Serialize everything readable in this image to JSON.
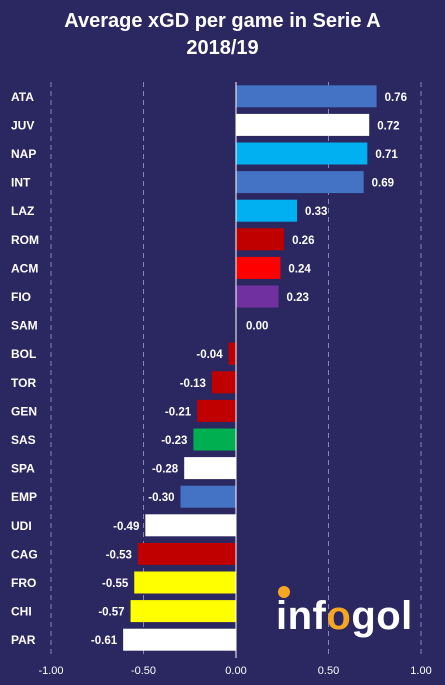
{
  "title_line1": "Average xGD per game in Serie A",
  "title_line2": "2018/19",
  "brand": {
    "pre": "inf",
    "accent": "o",
    "post": "gol",
    "accent_color": "#f5a623"
  },
  "chart_data": {
    "type": "bar",
    "orientation": "horizontal",
    "title": "Average xGD per game in Serie A 2018/19",
    "categories": [
      "ATA",
      "JUV",
      "NAP",
      "INT",
      "LAZ",
      "ROM",
      "ACM",
      "FIO",
      "SAM",
      "BOL",
      "TOR",
      "GEN",
      "SAS",
      "SPA",
      "EMP",
      "UDI",
      "CAG",
      "FRO",
      "CHI",
      "PAR"
    ],
    "values": [
      0.76,
      0.72,
      0.71,
      0.69,
      0.33,
      0.26,
      0.24,
      0.23,
      0.0,
      -0.04,
      -0.13,
      -0.21,
      -0.23,
      -0.28,
      -0.3,
      -0.49,
      -0.53,
      -0.55,
      -0.57,
      -0.61
    ],
    "value_labels": [
      "0.76",
      "0.72",
      "0.71",
      "0.69",
      "0.33",
      "0.26",
      "0.24",
      "0.23",
      "0.00",
      "-0.04",
      "-0.13",
      "-0.21",
      "-0.23",
      "-0.28",
      "-0.30",
      "-0.49",
      "-0.53",
      "-0.55",
      "-0.57",
      "-0.61"
    ],
    "colors": [
      "#4472c4",
      "#ffffff",
      "#00b0f0",
      "#4472c4",
      "#00b0f0",
      "#c00000",
      "#ff0000",
      "#7030a0",
      "#4472c4",
      "#c00000",
      "#c00000",
      "#c00000",
      "#00b050",
      "#ffffff",
      "#4472c4",
      "#ffffff",
      "#c00000",
      "#ffff00",
      "#ffff00",
      "#ffffff"
    ],
    "xlim": [
      -1.0,
      1.0
    ],
    "x_ticks": [
      "-1.00",
      "-0.50",
      "0.00",
      "0.50",
      "1.00"
    ],
    "x_tick_values": [
      -1.0,
      -0.5,
      0.0,
      0.5,
      1.0
    ],
    "xlabel": "",
    "ylabel": "",
    "grid": "vertical dashed",
    "legend": "none"
  }
}
